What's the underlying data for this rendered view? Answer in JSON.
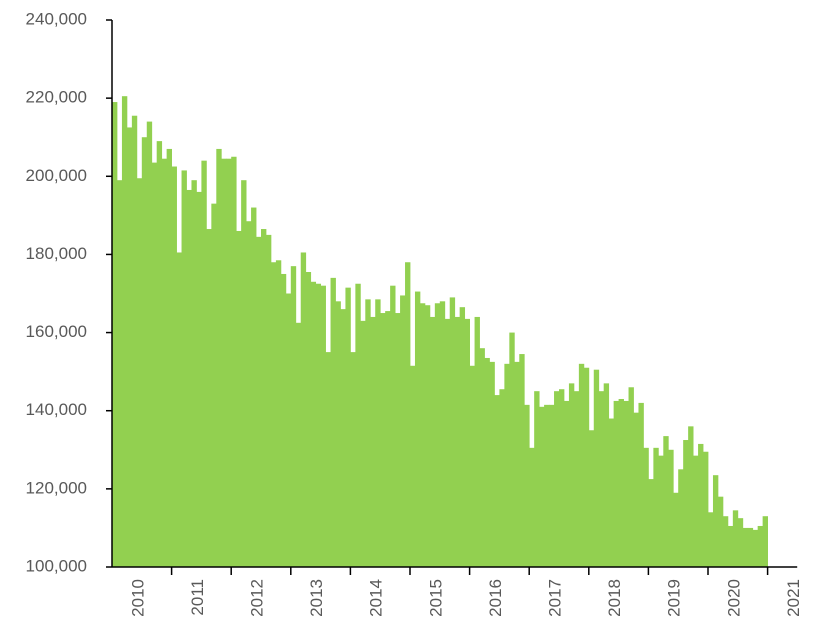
{
  "chart_data": {
    "type": "bar",
    "color": "#92d050",
    "year_labels": [
      "2010",
      "2011",
      "2012",
      "2013",
      "2014",
      "2015",
      "2016",
      "2017",
      "2018",
      "2019",
      "2020",
      "2021"
    ],
    "values": [
      219000,
      199000,
      220500,
      212500,
      215500,
      199500,
      210000,
      214000,
      203500,
      209000,
      204500,
      207000,
      202500,
      180500,
      201500,
      196500,
      199000,
      196000,
      204000,
      186500,
      193000,
      207000,
      204500,
      204500,
      205000,
      186000,
      199000,
      188500,
      192000,
      184500,
      186500,
      185000,
      178000,
      178500,
      175000,
      170000,
      177000,
      162500,
      180500,
      175500,
      173000,
      172500,
      172000,
      155000,
      174000,
      168000,
      166000,
      171500,
      155000,
      172500,
      163000,
      168500,
      164000,
      168500,
      165000,
      165500,
      172000,
      165000,
      169500,
      178000,
      151500,
      170500,
      167500,
      167000,
      164000,
      167500,
      168000,
      163500,
      169000,
      164000,
      166500,
      163500,
      151500,
      164000,
      156000,
      153500,
      152500,
      144000,
      145500,
      152000,
      160000,
      152500,
      154500,
      141500,
      130500,
      145000,
      141000,
      141500,
      141500,
      145000,
      145500,
      142500,
      147000,
      145000,
      152000,
      151000,
      135000,
      150500,
      145000,
      147000,
      138000,
      142500,
      143000,
      142500,
      146000,
      139500,
      142000,
      130500,
      122500,
      130500,
      128500,
      133500,
      130000,
      119000,
      125000,
      132500,
      136000,
      128500,
      131500,
      129500,
      114000,
      123500,
      118000,
      113000,
      110500,
      114500,
      112500,
      110000,
      110000,
      109500,
      110500,
      113000
    ],
    "ylim": [
      100000,
      240000
    ],
    "yticks": [
      {
        "value": 100000,
        "label": "100,000"
      },
      {
        "value": 120000,
        "label": "120,000"
      },
      {
        "value": 140000,
        "label": "140,000"
      },
      {
        "value": 160000,
        "label": "160,000"
      },
      {
        "value": 180000,
        "label": "180,000"
      },
      {
        "value": 200000,
        "label": "200,000"
      },
      {
        "value": 220000,
        "label": "220,000"
      },
      {
        "value": 240000,
        "label": "240,000"
      }
    ]
  }
}
